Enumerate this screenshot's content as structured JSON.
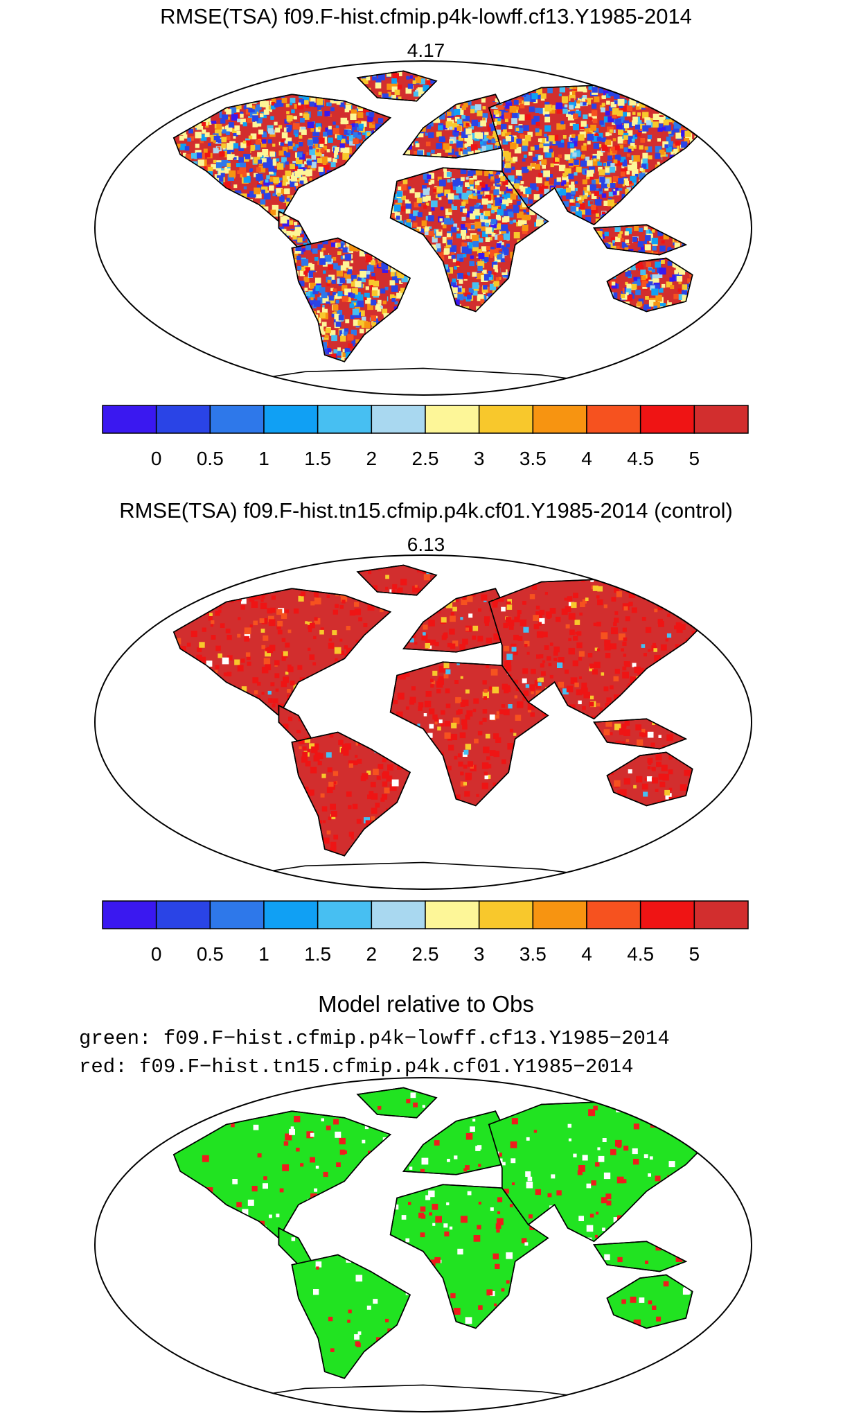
{
  "panels": [
    {
      "title": "RMSE(TSA) f09.F-hist.cfmip.p4k-lowff.cf13.Y1985-2014",
      "score": "4.17",
      "style": "mixed"
    },
    {
      "title": "RMSE(TSA) f09.F-hist.tn15.cfmip.p4k.cf01.Y1985-2014 (control)",
      "score": "6.13",
      "style": "red"
    }
  ],
  "colorbar": {
    "colors": [
      "#3a18f0",
      "#2a44e6",
      "#2e78ea",
      "#10a0f4",
      "#47bff2",
      "#a9d8f0",
      "#fdf698",
      "#f8c82c",
      "#f79411",
      "#f6521f",
      "#ef1414",
      "#d22e2e"
    ],
    "tick_labels": [
      "0",
      "0.5",
      "1",
      "1.5",
      "2",
      "2.5",
      "3",
      "3.5",
      "4",
      "4.5",
      "5"
    ]
  },
  "comparison": {
    "title": "Model relative to Obs",
    "legend_green": "green: f09.F−hist.cfmip.p4k−lowff.cf13.Y1985−2014",
    "legend_red": "red: f09.F−hist.tn15.cfmip.p4k.cf01.Y1985−2014",
    "green_color": "#21e321",
    "red_color": "#ee1c1c"
  }
}
